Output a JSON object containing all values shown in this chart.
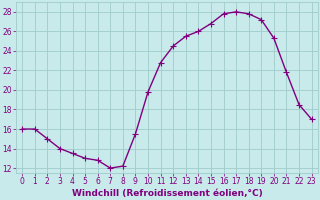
{
  "x": [
    0,
    1,
    2,
    3,
    4,
    5,
    6,
    7,
    8,
    9,
    10,
    11,
    12,
    13,
    14,
    15,
    16,
    17,
    18,
    19,
    20,
    21,
    22,
    23
  ],
  "y": [
    16.0,
    16.0,
    15.0,
    14.0,
    13.5,
    13.0,
    12.8,
    12.0,
    12.2,
    15.5,
    19.8,
    22.8,
    24.5,
    25.5,
    26.0,
    26.8,
    27.8,
    28.0,
    27.8,
    27.2,
    25.3,
    21.8,
    18.5,
    17.0
  ],
  "line_color": "#800080",
  "marker": "+",
  "marker_size": 4,
  "bg_color": "#c8eaea",
  "grid_color": "#a0cccc",
  "xlabel": "Windchill (Refroidissement éolien,°C)",
  "ylim": [
    11.5,
    29
  ],
  "xlim": [
    -0.5,
    23.5
  ],
  "yticks": [
    12,
    14,
    16,
    18,
    20,
    22,
    24,
    26,
    28
  ],
  "xticks": [
    0,
    1,
    2,
    3,
    4,
    5,
    6,
    7,
    8,
    9,
    10,
    11,
    12,
    13,
    14,
    15,
    16,
    17,
    18,
    19,
    20,
    21,
    22,
    23
  ],
  "tick_color": "#800080",
  "label_color": "#800080",
  "xlabel_fontsize": 6.5,
  "tick_fontsize": 5.5,
  "linewidth": 1.0,
  "markeredgewidth": 0.8
}
